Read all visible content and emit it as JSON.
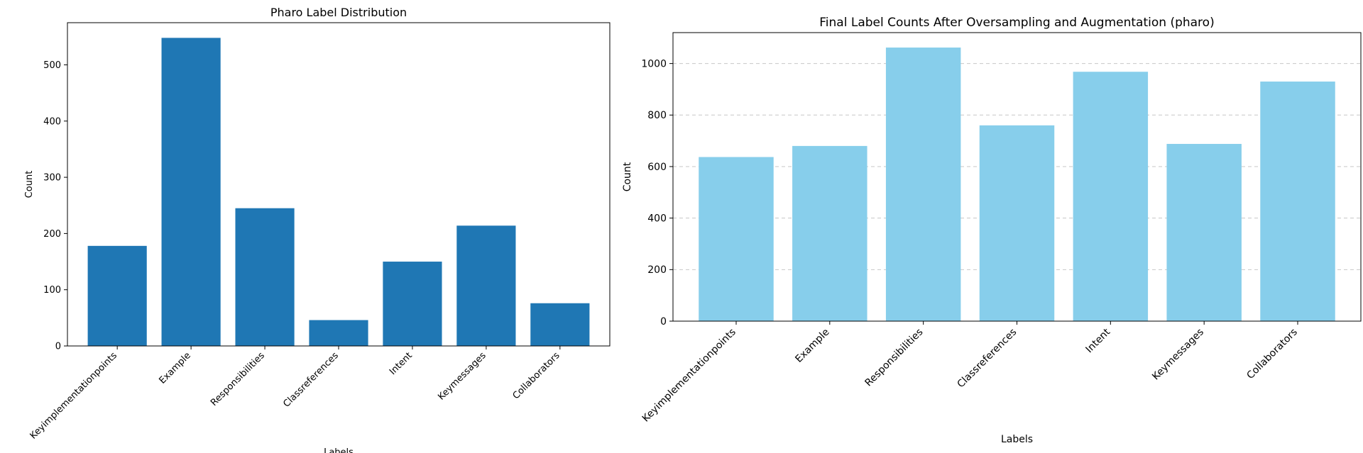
{
  "chart_data": [
    {
      "type": "bar",
      "title": "Pharo Label Distribution",
      "xlabel": "Labels",
      "ylabel": "Count",
      "categories": [
        "Keyimplementationpoints",
        "Example",
        "Responsibilities",
        "Classreferences",
        "Intent",
        "Keymessages",
        "Collaborators"
      ],
      "values": [
        178,
        548,
        245,
        46,
        150,
        214,
        76
      ],
      "ylim": [
        0,
        575
      ],
      "yticks": [
        0,
        100,
        200,
        300,
        400,
        500
      ],
      "grid": false,
      "bar_color": "#1f77b4"
    },
    {
      "type": "bar",
      "title": "Final Label Counts After Oversampling and Augmentation (pharo)",
      "xlabel": "Labels",
      "ylabel": "Count",
      "categories": [
        "Keyimplementationpoints",
        "Example",
        "Responsibilities",
        "Classreferences",
        "Intent",
        "Keymessages",
        "Collaborators"
      ],
      "values": [
        637,
        680,
        1062,
        760,
        968,
        688,
        930
      ],
      "ylim": [
        0,
        1120
      ],
      "yticks": [
        0,
        200,
        400,
        600,
        800,
        1000
      ],
      "grid": true,
      "grid_style": "dashed, y-axis",
      "bar_color": "#87ceeb"
    }
  ]
}
